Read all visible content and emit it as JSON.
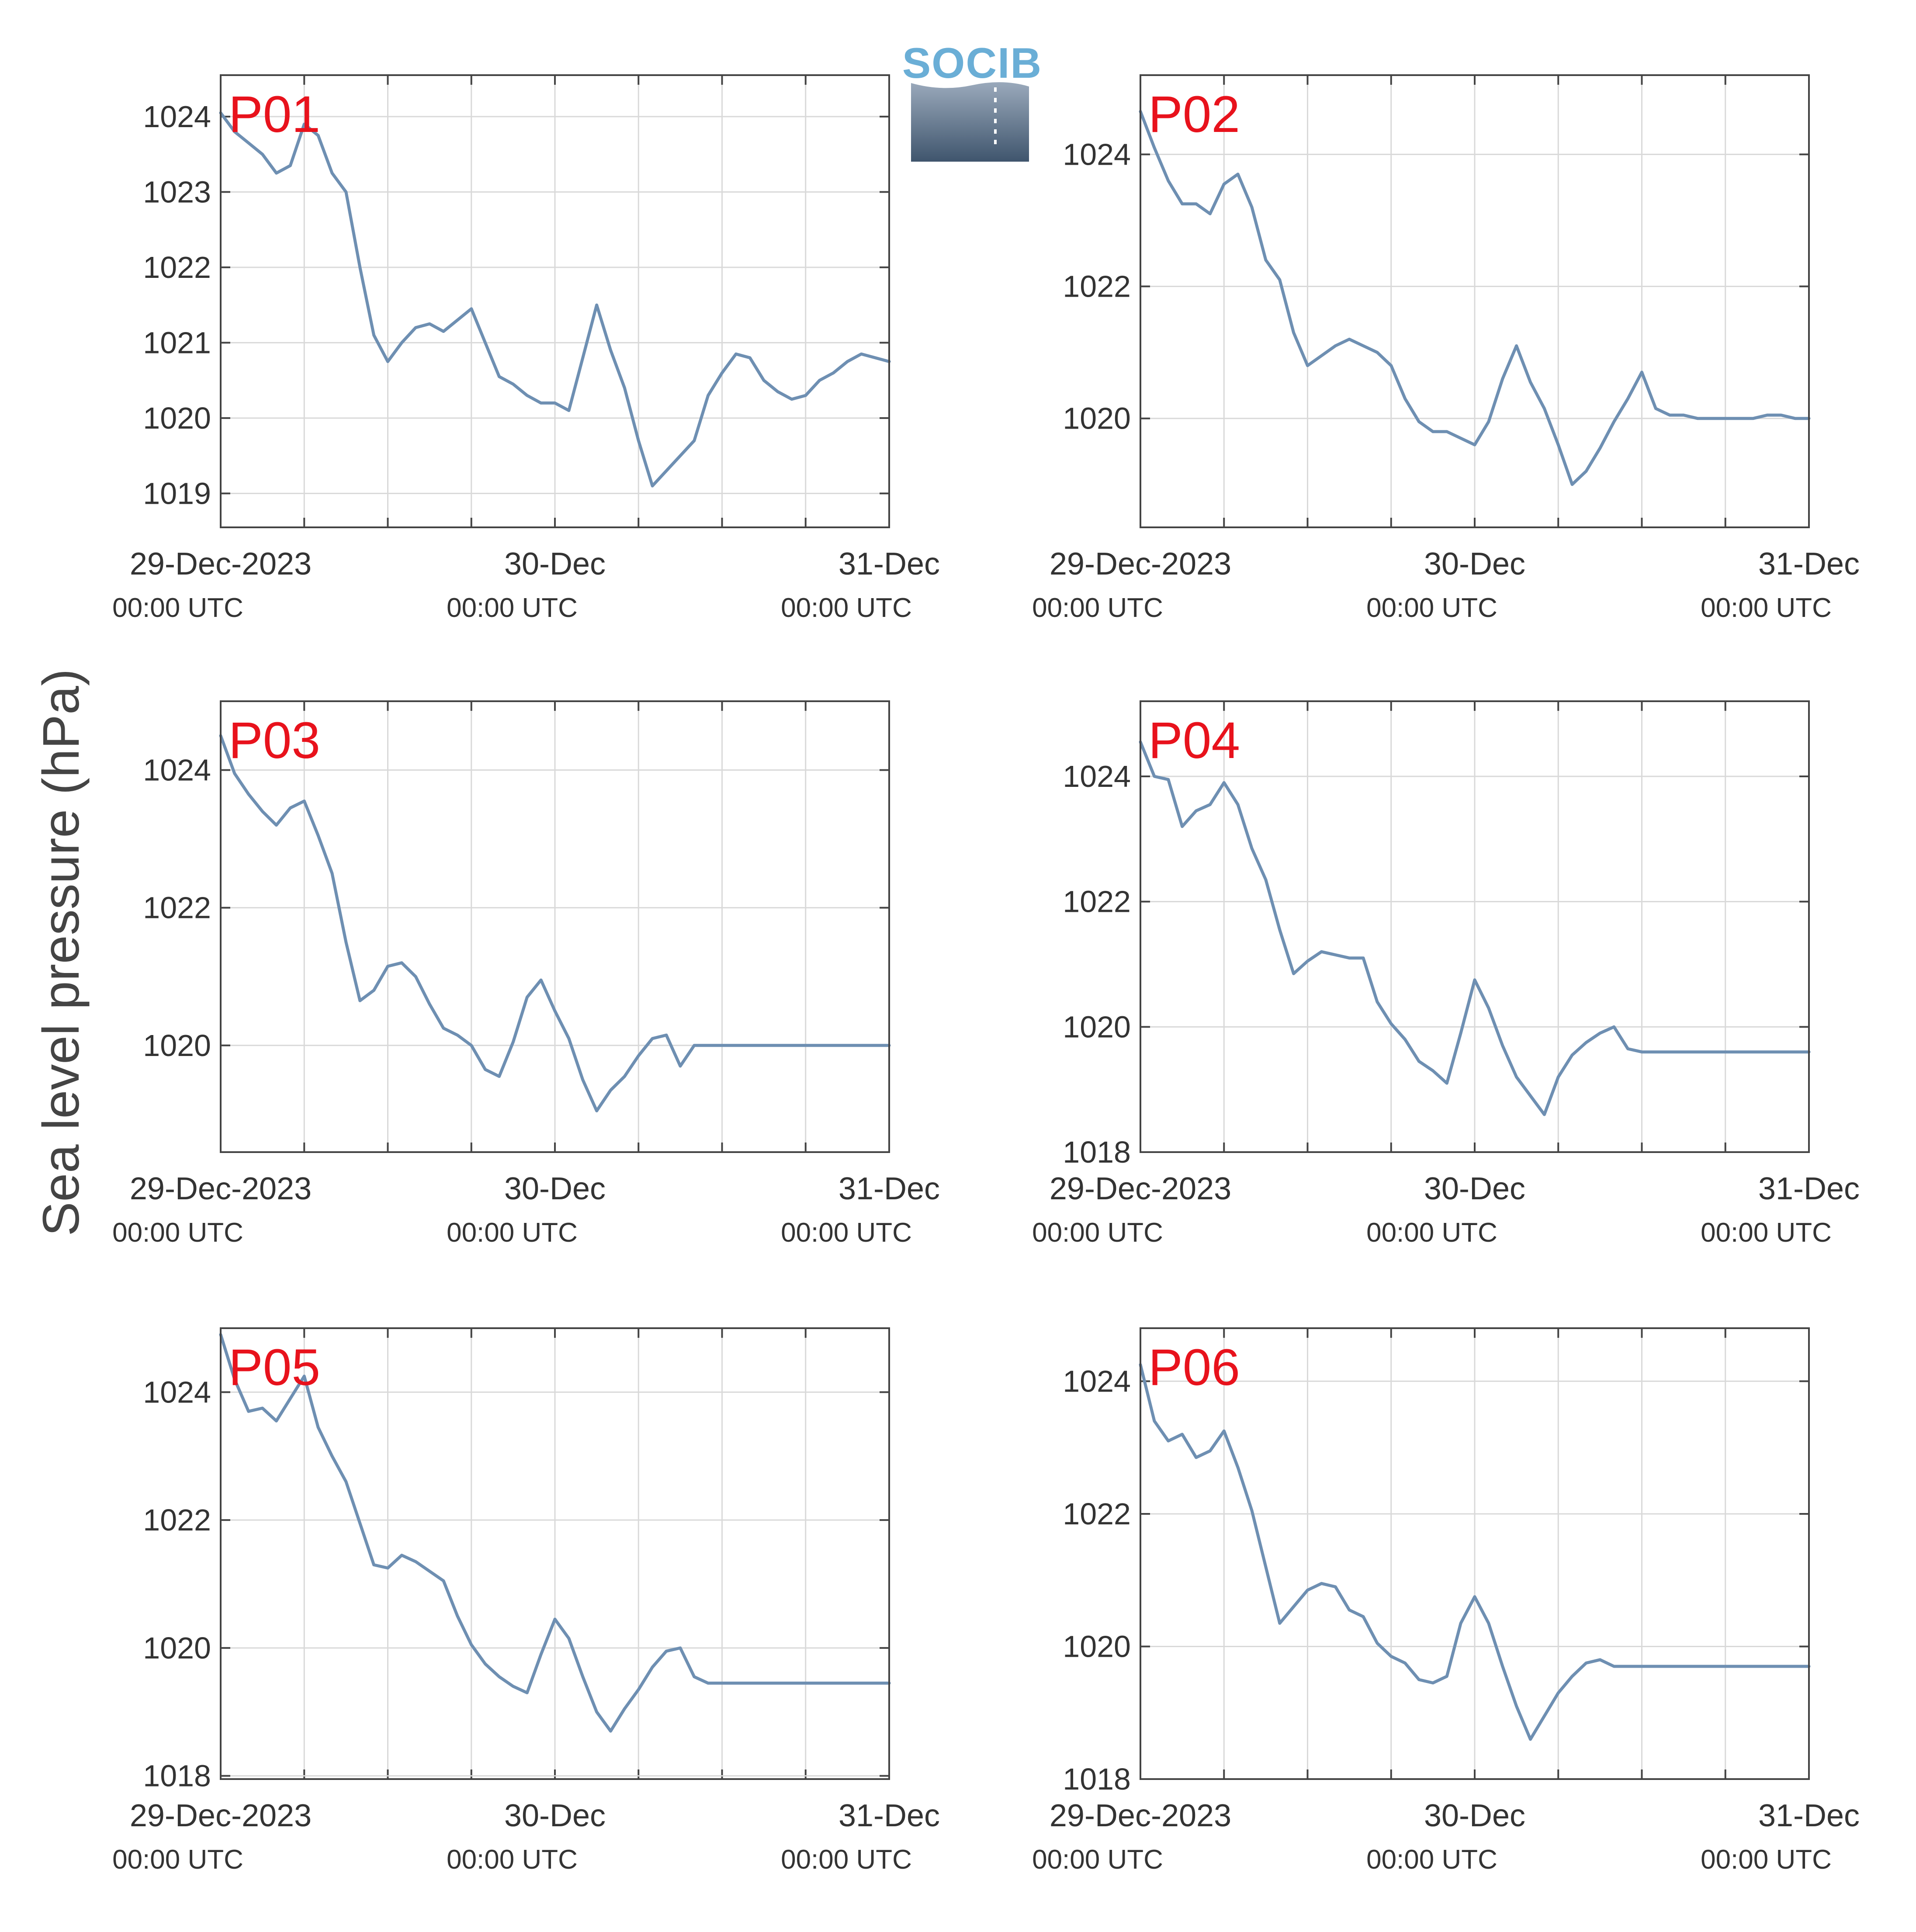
{
  "figure": {
    "ylabel": "Sea level pressure (hPa)",
    "logo_text": "SOCIB",
    "colors": {
      "line": "#6e8fb2",
      "label": "#e8121c",
      "grid": "#d9d9d9",
      "axis": "#444444"
    }
  },
  "chart_data": [
    {
      "type": "line",
      "panel": "P01",
      "x_ticks": [
        {
          "date": "29-Dec-2023",
          "time": "00:00 UTC"
        },
        {
          "date": "30-Dec",
          "time": "00:00 UTC"
        },
        {
          "date": "31-Dec",
          "time": "00:00 UTC"
        }
      ],
      "y_ticks": [
        "1019",
        "1020",
        "1021",
        "1022",
        "1023",
        "1024"
      ],
      "xlim": [
        0,
        48
      ],
      "ylim": [
        1018.55,
        1024.55
      ],
      "x": [
        0,
        1,
        2,
        3,
        4,
        5,
        6,
        7,
        8,
        9,
        10,
        11,
        12,
        13,
        14,
        15,
        16,
        17,
        18,
        19,
        20,
        21,
        22,
        23,
        24,
        25,
        26,
        27,
        28,
        29,
        30,
        31,
        32,
        33,
        34,
        35,
        36,
        37,
        38,
        39,
        40,
        41,
        42,
        43,
        44,
        45,
        46,
        47,
        48
      ],
      "y": [
        1024.05,
        1023.8,
        1023.65,
        1023.5,
        1023.25,
        1023.35,
        1023.9,
        1023.75,
        1023.25,
        1023.0,
        1022.0,
        1021.1,
        1020.75,
        1021.0,
        1021.2,
        1021.25,
        1021.15,
        1021.3,
        1021.45,
        1021.0,
        1020.55,
        1020.45,
        1020.3,
        1020.2,
        1020.2,
        1020.1,
        1020.8,
        1021.5,
        1020.9,
        1020.4,
        1019.7,
        1019.1,
        1019.3,
        1019.5,
        1019.7,
        1020.3,
        1020.6,
        1020.85,
        1020.8,
        1020.5,
        1020.35,
        1020.25,
        1020.3,
        1020.5,
        1020.6,
        1020.75,
        1020.85,
        1020.8,
        1020.75
      ]
    },
    {
      "type": "line",
      "panel": "P02",
      "x_ticks": [
        {
          "date": "29-Dec-2023",
          "time": "00:00 UTC"
        },
        {
          "date": "30-Dec",
          "time": "00:00 UTC"
        },
        {
          "date": "31-Dec",
          "time": "00:00 UTC"
        }
      ],
      "y_ticks": [
        "1020",
        "1022",
        "1024"
      ],
      "xlim": [
        0,
        48
      ],
      "ylim": [
        1018.35,
        1025.2
      ],
      "x": [
        0,
        1,
        2,
        3,
        4,
        5,
        6,
        7,
        8,
        9,
        10,
        11,
        12,
        13,
        14,
        15,
        16,
        17,
        18,
        19,
        20,
        21,
        22,
        23,
        24,
        25,
        26,
        27,
        28,
        29,
        30,
        31,
        32,
        33,
        34,
        35,
        36,
        37,
        38,
        39,
        40,
        41,
        42,
        43,
        44,
        45,
        46,
        47,
        48
      ],
      "y": [
        1024.65,
        1024.1,
        1023.6,
        1023.25,
        1023.25,
        1023.1,
        1023.55,
        1023.7,
        1023.2,
        1022.4,
        1022.1,
        1021.3,
        1020.8,
        1020.95,
        1021.1,
        1021.2,
        1021.1,
        1021.0,
        1020.8,
        1020.3,
        1019.95,
        1019.8,
        1019.8,
        1019.7,
        1019.6,
        1019.95,
        1020.6,
        1021.1,
        1020.55,
        1020.15,
        1019.6,
        1019.0,
        1019.2,
        1019.55,
        1019.95,
        1020.3,
        1020.7,
        1020.15,
        1020.05,
        1020.05,
        1020.0,
        1020.0,
        1020.0,
        1020.0,
        1020.0,
        1020.05,
        1020.05,
        1020.0,
        1020.0
      ]
    },
    {
      "type": "line",
      "panel": "P03",
      "x_ticks": [
        {
          "date": "29-Dec-2023",
          "time": "00:00 UTC"
        },
        {
          "date": "30-Dec",
          "time": "00:00 UTC"
        },
        {
          "date": "31-Dec",
          "time": "00:00 UTC"
        }
      ],
      "y_ticks": [
        "1020",
        "1022",
        "1024"
      ],
      "xlim": [
        0,
        48
      ],
      "ylim": [
        1018.45,
        1025.0
      ],
      "x": [
        0,
        1,
        2,
        3,
        4,
        5,
        6,
        7,
        8,
        9,
        10,
        11,
        12,
        13,
        14,
        15,
        16,
        17,
        18,
        19,
        20,
        21,
        22,
        23,
        24,
        25,
        26,
        27,
        28,
        29,
        30,
        31,
        32,
        33,
        34,
        35,
        36,
        37,
        38,
        39,
        40,
        41,
        42,
        43,
        44,
        45,
        46,
        47,
        48
      ],
      "y": [
        1024.5,
        1023.95,
        1023.65,
        1023.4,
        1023.2,
        1023.45,
        1023.55,
        1023.05,
        1022.5,
        1021.5,
        1020.65,
        1020.8,
        1021.15,
        1021.2,
        1021.0,
        1020.6,
        1020.25,
        1020.15,
        1020.0,
        1019.65,
        1019.55,
        1020.05,
        1020.7,
        1020.95,
        1020.5,
        1020.1,
        1019.5,
        1019.05,
        1019.35,
        1019.55,
        1019.85,
        1020.1,
        1020.15,
        1019.7,
        1020.0,
        1020.0,
        1020.0,
        1020.0,
        1020.0,
        1020.0,
        1020.0,
        1020.0,
        1020.0,
        1020.0,
        1020.0,
        1020.0,
        1020.0,
        1020.0,
        1020.0
      ]
    },
    {
      "type": "line",
      "panel": "P04",
      "x_ticks": [
        {
          "date": "29-Dec-2023",
          "time": "00:00 UTC"
        },
        {
          "date": "30-Dec",
          "time": "00:00 UTC"
        },
        {
          "date": "31-Dec",
          "time": "00:00 UTC"
        }
      ],
      "y_ticks": [
        "1018",
        "1020",
        "1022",
        "1024"
      ],
      "xlim": [
        0,
        48
      ],
      "ylim": [
        1018.0,
        1025.2
      ],
      "x": [
        0,
        1,
        2,
        3,
        4,
        5,
        6,
        7,
        8,
        9,
        10,
        11,
        12,
        13,
        14,
        15,
        16,
        17,
        18,
        19,
        20,
        21,
        22,
        23,
        24,
        25,
        26,
        27,
        28,
        29,
        30,
        31,
        32,
        33,
        34,
        35,
        36,
        37,
        38,
        39,
        40,
        41,
        42,
        43,
        44,
        45,
        46,
        47,
        48
      ],
      "y": [
        1024.55,
        1024.0,
        1023.95,
        1023.2,
        1023.45,
        1023.55,
        1023.9,
        1023.55,
        1022.85,
        1022.35,
        1021.55,
        1020.85,
        1021.05,
        1021.2,
        1021.15,
        1021.1,
        1021.1,
        1020.4,
        1020.05,
        1019.8,
        1019.45,
        1019.3,
        1019.1,
        1019.9,
        1020.75,
        1020.3,
        1019.7,
        1019.2,
        1018.9,
        1018.6,
        1019.2,
        1019.55,
        1019.75,
        1019.9,
        1020.0,
        1019.65,
        1019.6,
        1019.6,
        1019.6,
        1019.6,
        1019.6,
        1019.6,
        1019.6,
        1019.6,
        1019.6,
        1019.6,
        1019.6,
        1019.6,
        1019.6
      ]
    },
    {
      "type": "line",
      "panel": "P05",
      "x_ticks": [
        {
          "date": "29-Dec-2023",
          "time": "00:00 UTC"
        },
        {
          "date": "30-Dec",
          "time": "00:00 UTC"
        },
        {
          "date": "31-Dec",
          "time": "00:00 UTC"
        }
      ],
      "y_ticks": [
        "1018",
        "1020",
        "1022",
        "1024"
      ],
      "xlim": [
        0,
        48
      ],
      "ylim": [
        1017.95,
        1025.0
      ],
      "x": [
        0,
        1,
        2,
        3,
        4,
        5,
        6,
        7,
        8,
        9,
        10,
        11,
        12,
        13,
        14,
        15,
        16,
        17,
        18,
        19,
        20,
        21,
        22,
        23,
        24,
        25,
        26,
        27,
        28,
        29,
        30,
        31,
        32,
        33,
        34,
        35,
        36,
        37,
        38,
        39,
        40,
        41,
        42,
        43,
        44,
        45,
        46,
        47,
        48
      ],
      "y": [
        1024.9,
        1024.2,
        1023.7,
        1023.75,
        1023.55,
        1023.9,
        1024.25,
        1023.45,
        1023.0,
        1022.6,
        1021.95,
        1021.3,
        1021.25,
        1021.45,
        1021.35,
        1021.2,
        1021.05,
        1020.5,
        1020.05,
        1019.75,
        1019.55,
        1019.4,
        1019.3,
        1019.9,
        1020.45,
        1020.15,
        1019.55,
        1019.0,
        1018.7,
        1019.05,
        1019.35,
        1019.7,
        1019.95,
        1020.0,
        1019.55,
        1019.45,
        1019.45,
        1019.45,
        1019.45,
        1019.45,
        1019.45,
        1019.45,
        1019.45,
        1019.45,
        1019.45,
        1019.45,
        1019.45,
        1019.45,
        1019.45
      ]
    },
    {
      "type": "line",
      "panel": "P06",
      "x_ticks": [
        {
          "date": "29-Dec-2023",
          "time": "00:00 UTC"
        },
        {
          "date": "30-Dec",
          "time": "00:00 UTC"
        },
        {
          "date": "31-Dec",
          "time": "00:00 UTC"
        }
      ],
      "y_ticks": [
        "1018",
        "1020",
        "1022",
        "1024"
      ],
      "xlim": [
        0,
        48
      ],
      "ylim": [
        1018.0,
        1024.8
      ],
      "x": [
        0,
        1,
        2,
        3,
        4,
        5,
        6,
        7,
        8,
        9,
        10,
        11,
        12,
        13,
        14,
        15,
        16,
        17,
        18,
        19,
        20,
        21,
        22,
        23,
        24,
        25,
        26,
        27,
        28,
        29,
        30,
        31,
        32,
        33,
        34,
        35,
        36,
        37,
        38,
        39,
        40,
        41,
        42,
        43,
        44,
        45,
        46,
        47,
        48
      ],
      "y": [
        1024.25,
        1023.4,
        1023.1,
        1023.2,
        1022.85,
        1022.95,
        1023.25,
        1022.7,
        1022.05,
        1021.2,
        1020.35,
        1020.6,
        1020.85,
        1020.95,
        1020.9,
        1020.55,
        1020.45,
        1020.05,
        1019.85,
        1019.75,
        1019.5,
        1019.45,
        1019.55,
        1020.35,
        1020.75,
        1020.35,
        1019.7,
        1019.1,
        1018.6,
        1018.95,
        1019.3,
        1019.55,
        1019.75,
        1019.8,
        1019.7,
        1019.7,
        1019.7,
        1019.7,
        1019.7,
        1019.7,
        1019.7,
        1019.7,
        1019.7,
        1019.7,
        1019.7,
        1019.7,
        1019.7,
        1019.7,
        1019.7
      ]
    }
  ]
}
